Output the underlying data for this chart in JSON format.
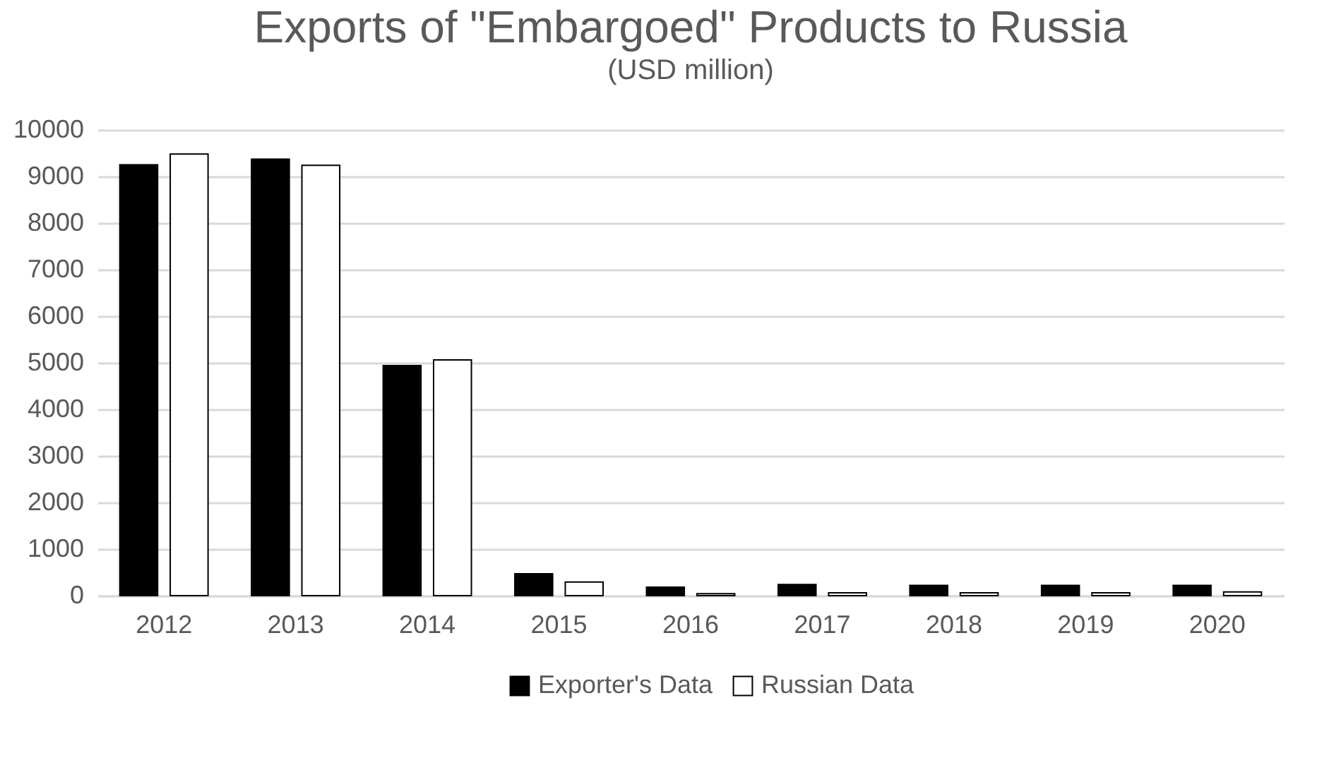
{
  "chart_data": {
    "type": "bar",
    "title": "Exports of \"Embargoed\" Products to Russia",
    "subtitle": "(USD million)",
    "categories": [
      "2012",
      "2013",
      "2014",
      "2015",
      "2016",
      "2017",
      "2018",
      "2019",
      "2020"
    ],
    "series": [
      {
        "name": "Exporter's Data",
        "color": "#000000",
        "values": [
          9250,
          9370,
          4940,
          470,
          180,
          240,
          220,
          220,
          220
        ]
      },
      {
        "name": "Russian Data",
        "color": "#ffffff",
        "values": [
          9480,
          9240,
          5060,
          290,
          40,
          60,
          60,
          60,
          80
        ]
      }
    ],
    "ylim": [
      0,
      10000
    ],
    "yticks": [
      0,
      1000,
      2000,
      3000,
      4000,
      5000,
      6000,
      7000,
      8000,
      9000,
      10000
    ],
    "grid": "y",
    "legend": "bottom"
  }
}
